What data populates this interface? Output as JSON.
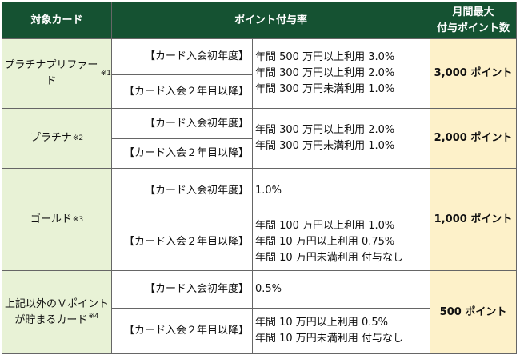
{
  "header": {
    "col_card": "対象カード",
    "col_rate": "ポイント付与率",
    "col_max_line1": "月間最大",
    "col_max_line2": "付与ポイント数"
  },
  "rows": [
    {
      "card": "プラチナプリファード",
      "note": "※1",
      "first_year": "【カード入会初年度】",
      "later_years": "【カード入会２年目以降】",
      "rates": [
        "年間 500 万円以上利用 3.0%",
        "年間 300 万円以上利用 2.0%",
        "年間 300 万円未満利用 1.0%"
      ],
      "max": "3,000 ポイント"
    },
    {
      "card": "プラチナ",
      "note": "※2",
      "first_year": "【カード入会初年度】",
      "later_years": "【カード入会２年目以降】",
      "rates": [
        "年間 300 万円以上利用 2.0%",
        "年間 300 万円未満利用 1.0%"
      ],
      "max": "2,000 ポイント"
    },
    {
      "card": "ゴールド",
      "note": "※3",
      "first_year": "【カード入会初年度】",
      "first_rate": "1.0%",
      "later_years": "【カード入会２年目以降】",
      "later_rates": [
        "年間 100 万円以上利用 1.0%",
        "年間 10 万円以上利用 0.75%",
        "年間 10 万円未満利用 付与なし"
      ],
      "max": "1,000 ポイント"
    },
    {
      "card_line1": "上記以外のＶポイント",
      "card_line2": "が貯まるカード",
      "note": "※4",
      "first_year": "【カード入会初年度】",
      "first_rate": "0.5%",
      "later_years": "【カード入会２年目以降】",
      "later_rates": [
        "年間 10 万円以上利用 0.5%",
        "年間 10 万円未満利用 付与なし"
      ],
      "max": "500 ポイント"
    }
  ],
  "colors": {
    "header_bg": "#155232",
    "card_bg": "#e8f2d6",
    "max_bg": "#fdf1c9"
  }
}
